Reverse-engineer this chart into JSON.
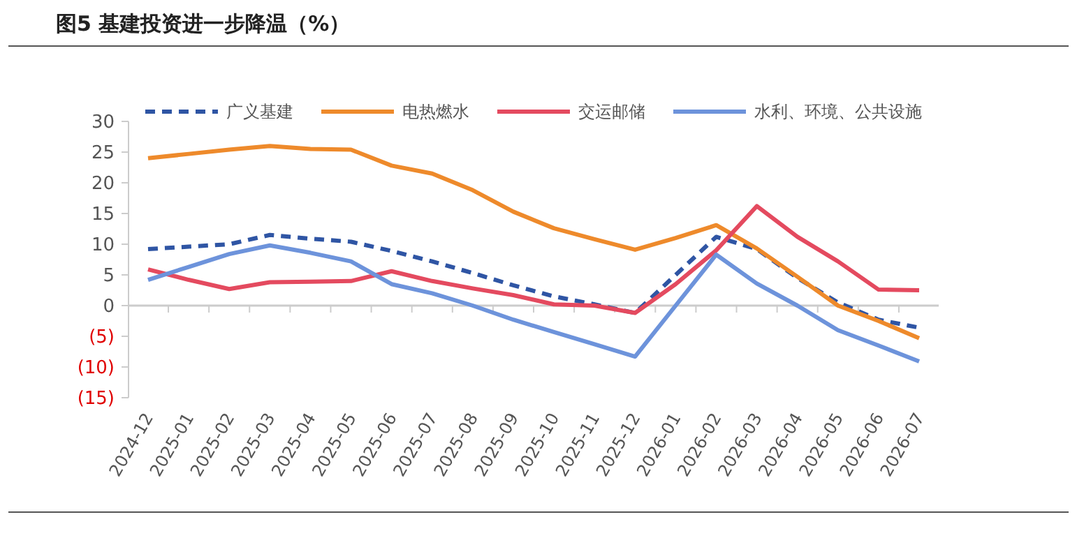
{
  "chart_data": {
    "type": "line",
    "title": "图5  基建投资进一步降温（%）",
    "categories": [
      "2024-12",
      "2025-01",
      "2025-02",
      "2025-03",
      "2025-04",
      "2025-05",
      "2025-06",
      "2025-07",
      "2025-08",
      "2025-09",
      "2025-10",
      "2025-11",
      "2025-12",
      "2026-01",
      "2026-02",
      "2026-03",
      "2026-04",
      "2026-05",
      "2026-06",
      "2026-07"
    ],
    "series": [
      {
        "name": "广义基建",
        "color": "#2f55a4",
        "line_style": "dashed",
        "values": [
          9.2,
          9.6,
          10,
          11.5,
          10.9,
          10.4,
          8.9,
          7.2,
          5.3,
          3.3,
          1.5,
          0.2,
          -1.2,
          5,
          11.2,
          9.2,
          4.5,
          0.5,
          -2.3,
          -3.6
        ]
      },
      {
        "name": "电热燃水",
        "color": "#ee8a2b",
        "line_style": "solid",
        "values": [
          24,
          24.7,
          25.4,
          26,
          25.5,
          25.4,
          22.8,
          21.5,
          18.8,
          15.3,
          12.6,
          10.8,
          9.1,
          11,
          13.1,
          9.3,
          4.7,
          0,
          -2.5,
          -5.3
        ]
      },
      {
        "name": "交运邮储",
        "color": "#e44a5f",
        "line_style": "solid",
        "values": [
          5.9,
          4.2,
          2.7,
          3.8,
          3.9,
          4,
          5.6,
          4,
          2.8,
          1.7,
          0.2,
          0,
          -1.2,
          3.5,
          9,
          16.2,
          11.2,
          7.2,
          2.6,
          2.5
        ]
      },
      {
        "name": "水利、环境、公共设施",
        "color": "#6d93db",
        "line_style": "solid",
        "values": [
          4.2,
          6.3,
          8.4,
          9.8,
          8.6,
          7.2,
          3.5,
          2,
          0,
          -2.3,
          -4.3,
          -6.3,
          -8.3,
          0,
          8.3,
          3.6,
          0,
          -4,
          -6.5,
          -9.1
        ]
      }
    ],
    "ylim": [
      -15,
      30
    ],
    "yticks": [
      {
        "value": -15,
        "label": "(15)"
      },
      {
        "value": -10,
        "label": "(10)"
      },
      {
        "value": -5,
        "label": "(5)"
      },
      0,
      5,
      10,
      15,
      20,
      25,
      30
    ],
    "legend": "top",
    "marker": "none"
  }
}
